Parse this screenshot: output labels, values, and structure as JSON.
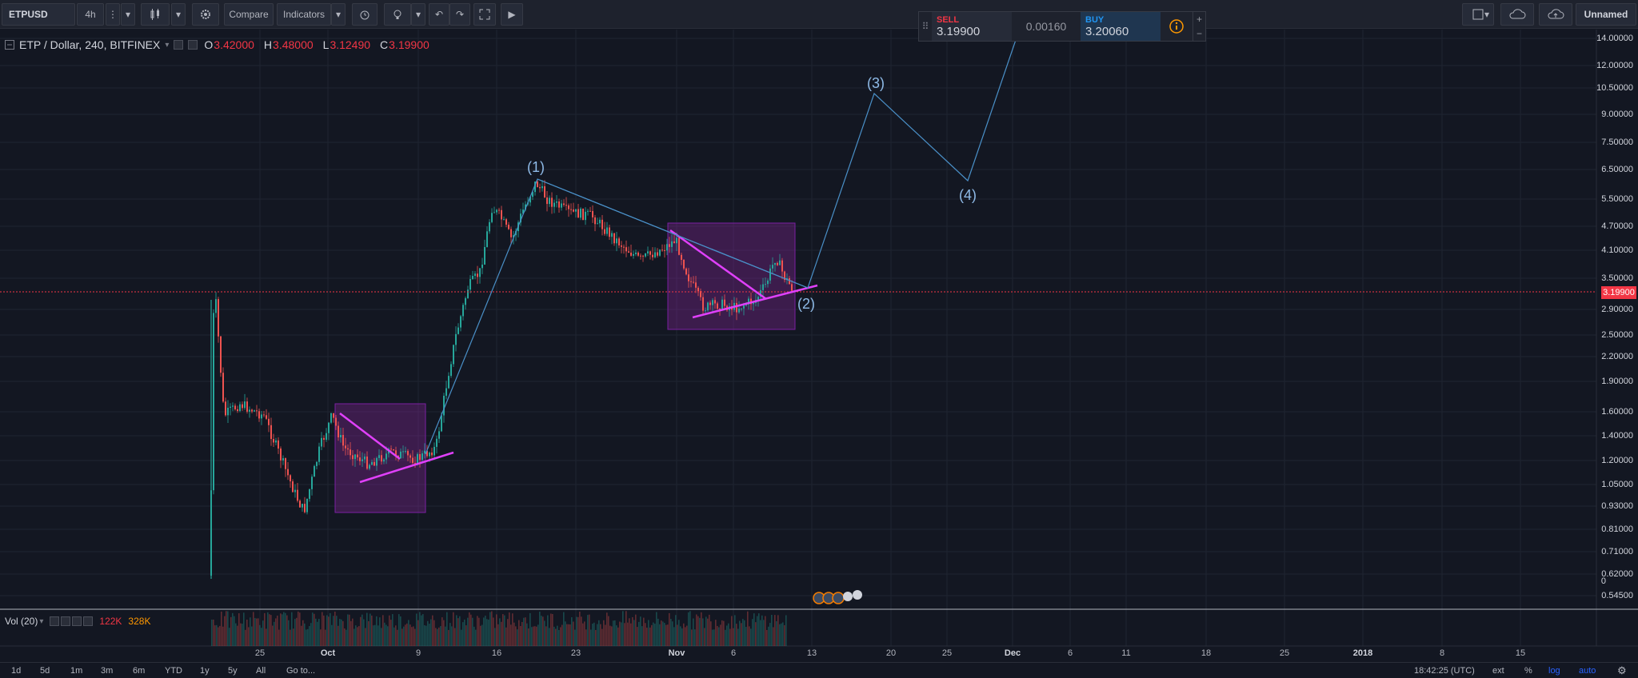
{
  "toolbar": {
    "symbol": "ETPUSD",
    "interval": "4h",
    "compare_label": "Compare",
    "indicators_label": "Indicators",
    "account_label": "Unnamed"
  },
  "trade": {
    "sell_label": "SELL",
    "sell_price": "3.19900",
    "spread": "0.00160",
    "buy_label": "BUY",
    "buy_price": "3.20060",
    "plus": "+",
    "minus": "−"
  },
  "legend": {
    "title": "ETP / Dollar, 240, BITFINEX",
    "o_key": "O",
    "o_val": "3.42000",
    "h_key": "H",
    "h_val": "3.48000",
    "l_key": "L",
    "l_val": "3.12490",
    "c_key": "C",
    "c_val": "3.19900"
  },
  "price_scale": [
    "14.00000",
    "12.00000",
    "10.50000",
    "9.00000",
    "7.50000",
    "6.50000",
    "5.50000",
    "4.70000",
    "4.10000",
    "3.50000",
    "2.90000",
    "2.50000",
    "2.20000",
    "1.90000",
    "1.60000",
    "1.40000",
    "1.20000",
    "1.05000",
    "0.93000",
    "0.81000",
    "0.71000",
    "0.62000",
    "0.54500"
  ],
  "last_price": "3.19900",
  "volume": {
    "label": "Vol (20)",
    "val_a": "122K",
    "val_b": "328K",
    "scale_zero": "0"
  },
  "wave_labels": {
    "w1": "(1)",
    "w2": "(2)",
    "w3": "(3)",
    "w4": "(4)"
  },
  "time_axis": [
    "25",
    "Oct",
    "9",
    "16",
    "23",
    "Nov",
    "6",
    "13",
    "20",
    "25",
    "Dec",
    "6",
    "11",
    "18",
    "25",
    "2018",
    "8",
    "15"
  ],
  "bottom": {
    "ranges": [
      "1d",
      "5d",
      "1m",
      "3m",
      "6m",
      "YTD",
      "1y",
      "5y",
      "All"
    ],
    "goto": "Go to...",
    "clock": "18:42:25 (UTC)",
    "ext": "ext",
    "pct": "%",
    "log": "log",
    "auto": "auto"
  },
  "colors": {
    "up": "#26a69a",
    "down": "#ef5350",
    "wave": "#4a90c8",
    "pattern": "#e040fb",
    "box_fill": "rgba(156,39,176,0.30)"
  },
  "chart_data": {
    "type": "candlestick",
    "scale": "log",
    "ylim": [
      0.5,
      14.5
    ],
    "wave_points": [
      {
        "label": "(1)",
        "value": 6.2
      },
      {
        "label": "(2)",
        "value": 3.2
      },
      {
        "label": "(3)",
        "value": 10.2
      },
      {
        "label": "(4)",
        "value": 6.1
      }
    ]
  }
}
